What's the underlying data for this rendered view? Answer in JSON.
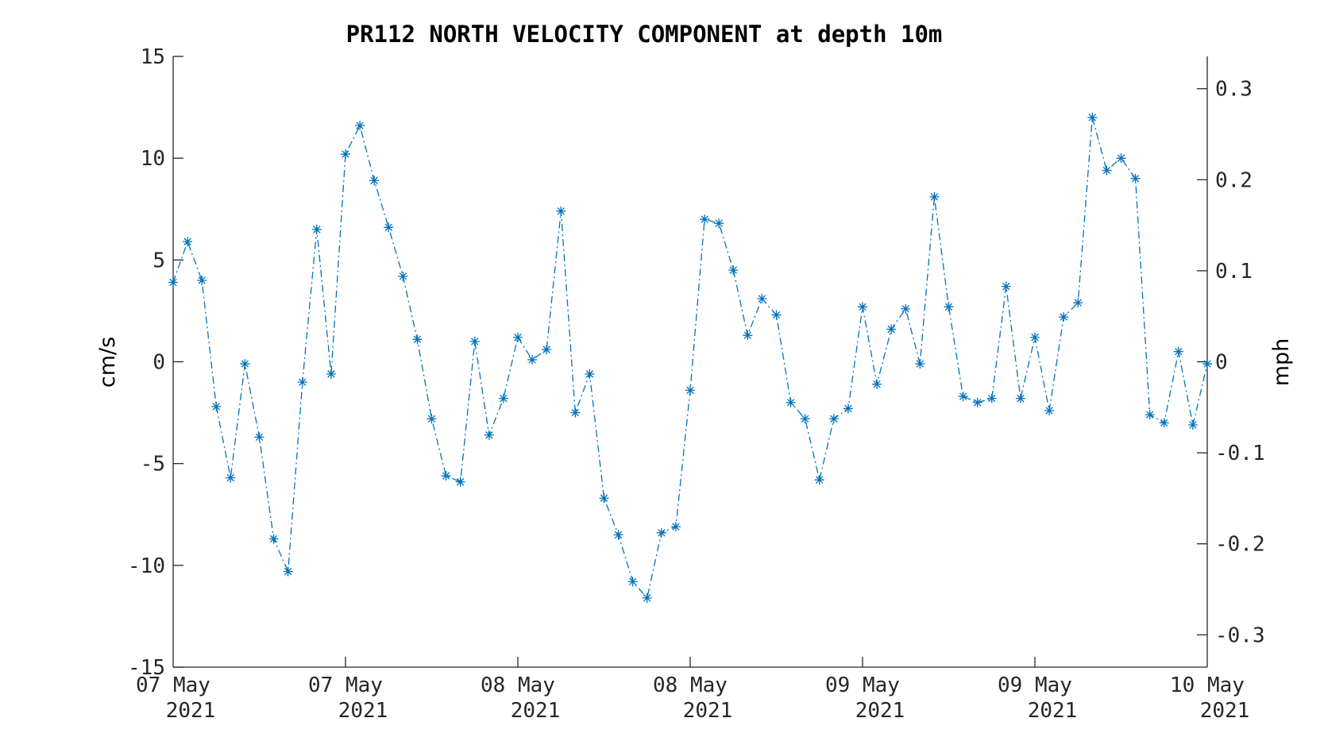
{
  "chart_data": {
    "type": "line",
    "title": "PR112 NORTH VELOCITY COMPONENT at depth 10m",
    "ylabel": "cm/s",
    "ylabel_right": "mph",
    "ylim": [
      -15,
      15
    ],
    "y_ticks": [
      "15",
      "10",
      "5",
      "0",
      "-5",
      "-10",
      "-15"
    ],
    "ylim_right": [
      -0.3355,
      0.3355
    ],
    "y_right_ticks": [
      "0.3",
      "0.2",
      "0.1",
      "0",
      "-0.1",
      "-0.2",
      "-0.3"
    ],
    "x_ticks": [
      {
        "line1": "07 May",
        "line2": "2021"
      },
      {
        "line1": "07 May",
        "line2": "2021"
      },
      {
        "line1": "08 May",
        "line2": "2021"
      },
      {
        "line1": "08 May",
        "line2": "2021"
      },
      {
        "line1": "09 May",
        "line2": "2021"
      },
      {
        "line1": "09 May",
        "line2": "2021"
      },
      {
        "line1": "10 May",
        "line2": "2021"
      }
    ],
    "grid": false,
    "marker": "asterisk",
    "line_style": "dash-dot",
    "series": [
      {
        "color": "#0072bd",
        "values": [
          3.9,
          5.9,
          4.0,
          -2.2,
          -5.7,
          -0.1,
          -3.7,
          -8.7,
          -10.3,
          -1.0,
          6.5,
          -0.6,
          10.2,
          11.6,
          8.9,
          6.6,
          4.2,
          1.1,
          -2.8,
          -5.6,
          -5.9,
          1.0,
          -3.6,
          -1.8,
          1.2,
          0.1,
          0.6,
          7.4,
          -2.5,
          -0.6,
          -6.7,
          -8.5,
          -10.8,
          -11.6,
          -8.4,
          -8.1,
          -1.4,
          7.0,
          6.8,
          4.5,
          1.3,
          3.1,
          2.3,
          -2.0,
          -2.8,
          -5.8,
          -2.8,
          -2.3,
          2.7,
          -1.1,
          1.6,
          2.6,
          -0.1,
          8.1,
          2.7,
          -1.7,
          -2.0,
          -1.8,
          3.7,
          -1.8,
          1.2,
          -2.4,
          2.2,
          2.9,
          12.0,
          9.4,
          10.0,
          9.0,
          -2.6,
          -3.0,
          0.5,
          -3.1,
          -0.1
        ]
      }
    ]
  }
}
